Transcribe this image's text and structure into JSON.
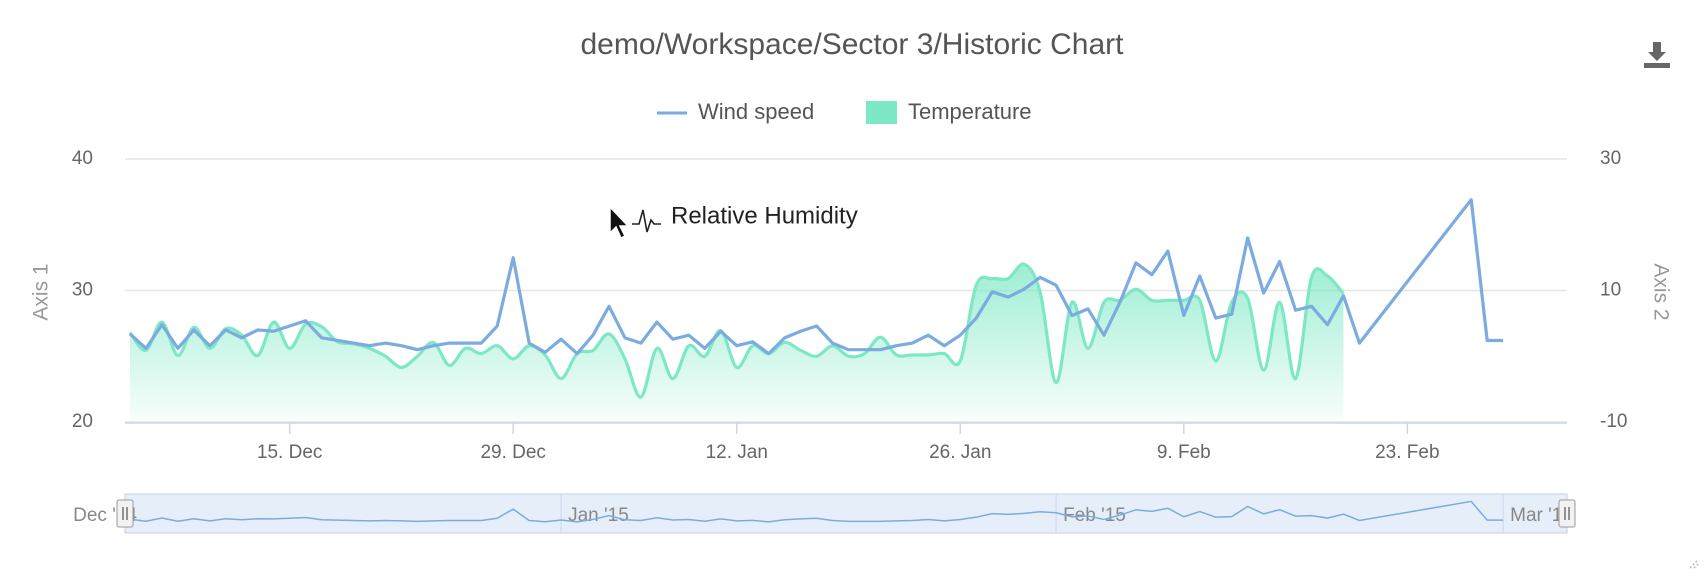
{
  "chart_data": {
    "type": "line",
    "title": "demo/Workspace/Sector 3/Historic Chart",
    "annotation": "Relative Humidity",
    "y_label": "Axis 1",
    "y2_label": "Axis 2",
    "xlim": [
      "2014-12-05",
      "2015-03-05"
    ],
    "xticks": [
      {
        "value": "2014-12-15",
        "label": "15. Dec"
      },
      {
        "value": "2014-12-29",
        "label": "29. Dec"
      },
      {
        "value": "2015-01-12",
        "label": "12. Jan"
      },
      {
        "value": "2015-01-26",
        "label": "26. Jan"
      },
      {
        "value": "2015-02-09",
        "label": "9. Feb"
      },
      {
        "value": "2015-02-23",
        "label": "23. Feb"
      }
    ],
    "navigator_ticks": [
      {
        "value": "2014-12-01",
        "label": "Dec '14"
      },
      {
        "value": "2015-01-01",
        "label": "Jan '15"
      },
      {
        "value": "2015-02-01",
        "label": "Feb '15"
      },
      {
        "value": "2015-03-01",
        "label": "Mar '15"
      }
    ],
    "ylim": [
      20,
      40
    ],
    "yticks": [
      20,
      30,
      40
    ],
    "y2lim": [
      -10,
      30
    ],
    "y2ticks": [
      -10,
      10,
      30
    ],
    "grid": true,
    "series": [
      {
        "name": "Wind speed",
        "color": "#7cabe0",
        "type": "line",
        "x": [
          "2014-12-05",
          "2014-12-06",
          "2014-12-07",
          "2014-12-08",
          "2014-12-09",
          "2014-12-10",
          "2014-12-11",
          "2014-12-12",
          "2014-12-13",
          "2014-12-14",
          "2014-12-15",
          "2014-12-16",
          "2014-12-17",
          "2014-12-18",
          "2014-12-19",
          "2014-12-20",
          "2014-12-21",
          "2014-12-22",
          "2014-12-23",
          "2014-12-24",
          "2014-12-25",
          "2014-12-26",
          "2014-12-27",
          "2014-12-28",
          "2014-12-29",
          "2014-12-30",
          "2014-12-31",
          "2015-01-01",
          "2015-01-02",
          "2015-01-03",
          "2015-01-04",
          "2015-01-05",
          "2015-01-06",
          "2015-01-07",
          "2015-01-08",
          "2015-01-09",
          "2015-01-10",
          "2015-01-11",
          "2015-01-12",
          "2015-01-13",
          "2015-01-14",
          "2015-01-15",
          "2015-01-16",
          "2015-01-17",
          "2015-01-18",
          "2015-01-19",
          "2015-01-20",
          "2015-01-21",
          "2015-01-22",
          "2015-01-23",
          "2015-01-24",
          "2015-01-25",
          "2015-01-26",
          "2015-01-27",
          "2015-01-28",
          "2015-01-29",
          "2015-01-30",
          "2015-01-31",
          "2015-02-01",
          "2015-02-02",
          "2015-02-03",
          "2015-02-04",
          "2015-02-05",
          "2015-02-06",
          "2015-02-07",
          "2015-02-08",
          "2015-02-09",
          "2015-02-10",
          "2015-02-11",
          "2015-02-12",
          "2015-02-13",
          "2015-02-14",
          "2015-02-15",
          "2015-02-16",
          "2015-02-17",
          "2015-02-18",
          "2015-02-19",
          "2015-02-20",
          "2015-02-27",
          "2015-02-28",
          "2015-03-01"
        ],
        "values": [
          26.7,
          25.6,
          27.4,
          25.6,
          27.0,
          25.8,
          27.0,
          26.4,
          27.0,
          26.9,
          27.3,
          27.7,
          26.4,
          26.2,
          26.0,
          25.8,
          26.0,
          25.8,
          25.5,
          25.8,
          26.0,
          26.0,
          26.0,
          27.3,
          32.5,
          26.0,
          25.3,
          26.3,
          25.2,
          26.6,
          28.8,
          26.4,
          26.0,
          27.6,
          26.3,
          26.6,
          25.6,
          26.9,
          25.8,
          26.1,
          25.2,
          26.4,
          26.9,
          27.3,
          26.0,
          25.5,
          25.5,
          25.5,
          25.8,
          26.0,
          26.6,
          25.8,
          26.6,
          27.9,
          29.9,
          29.5,
          30.1,
          31.0,
          30.4,
          28.1,
          28.6,
          26.6,
          29.1,
          32.1,
          31.2,
          33.0,
          28.1,
          31.1,
          27.9,
          28.2,
          34.0,
          29.8,
          32.2,
          28.5,
          28.8,
          27.4,
          29.6,
          26.0,
          36.9,
          26.2,
          26.2
        ]
      },
      {
        "name": "Temperature",
        "color": "#7de8c5",
        "type": "areaspline",
        "axis": "y2",
        "x": [
          "2014-12-05",
          "2014-12-06",
          "2014-12-07",
          "2014-12-08",
          "2014-12-09",
          "2014-12-10",
          "2014-12-11",
          "2014-12-12",
          "2014-12-13",
          "2014-12-14",
          "2014-12-15",
          "2014-12-16",
          "2014-12-17",
          "2014-12-18",
          "2014-12-19",
          "2014-12-20",
          "2014-12-21",
          "2014-12-22",
          "2014-12-23",
          "2014-12-24",
          "2014-12-25",
          "2014-12-26",
          "2014-12-27",
          "2014-12-28",
          "2014-12-29",
          "2014-12-30",
          "2014-12-31",
          "2015-01-01",
          "2015-01-02",
          "2015-01-03",
          "2015-01-04",
          "2015-01-05",
          "2015-01-06",
          "2015-01-07",
          "2015-01-08",
          "2015-01-09",
          "2015-01-10",
          "2015-01-11",
          "2015-01-12",
          "2015-01-13",
          "2015-01-14",
          "2015-01-15",
          "2015-01-16",
          "2015-01-17",
          "2015-01-18",
          "2015-01-19",
          "2015-01-20",
          "2015-01-21",
          "2015-01-22",
          "2015-01-23",
          "2015-01-24",
          "2015-01-25",
          "2015-01-26",
          "2015-01-27",
          "2015-01-28",
          "2015-01-29",
          "2015-01-30",
          "2015-01-31",
          "2015-02-01",
          "2015-02-02",
          "2015-02-03",
          "2015-02-04",
          "2015-02-05",
          "2015-02-06",
          "2015-02-07",
          "2015-02-08",
          "2015-02-09",
          "2015-02-10",
          "2015-02-11",
          "2015-02-12",
          "2015-02-13",
          "2015-02-14",
          "2015-02-15",
          "2015-02-16",
          "2015-02-17",
          "2015-02-18",
          "2015-02-19"
        ],
        "values": [
          3.6,
          0.9,
          5.2,
          0.1,
          4.4,
          1.2,
          4.2,
          3.2,
          0.1,
          5.2,
          1.2,
          4.9,
          4.5,
          2.2,
          1.9,
          1.2,
          0,
          -1.7,
          0,
          2.1,
          -1.4,
          1.2,
          0.4,
          1.6,
          -0.4,
          1.6,
          0.2,
          -3.4,
          0.4,
          0.9,
          3.4,
          -0.4,
          -6.2,
          1.2,
          -3.4,
          1.6,
          0,
          3.9,
          -1.7,
          1.6,
          0.4,
          2.1,
          0.9,
          0,
          1.6,
          0,
          0.4,
          2.9,
          0.2,
          0.2,
          0.2,
          0.4,
          -0.7,
          10.8,
          11.8,
          11.8,
          14,
          9.8,
          -4.0,
          8.2,
          1.2,
          8.2,
          8.5,
          10.2,
          8.5,
          8.5,
          8.5,
          8.5,
          -0.7,
          8.2,
          8.8,
          -2.1,
          8.2,
          -3.4,
          12,
          12.2,
          9.5
        ]
      }
    ]
  }
}
